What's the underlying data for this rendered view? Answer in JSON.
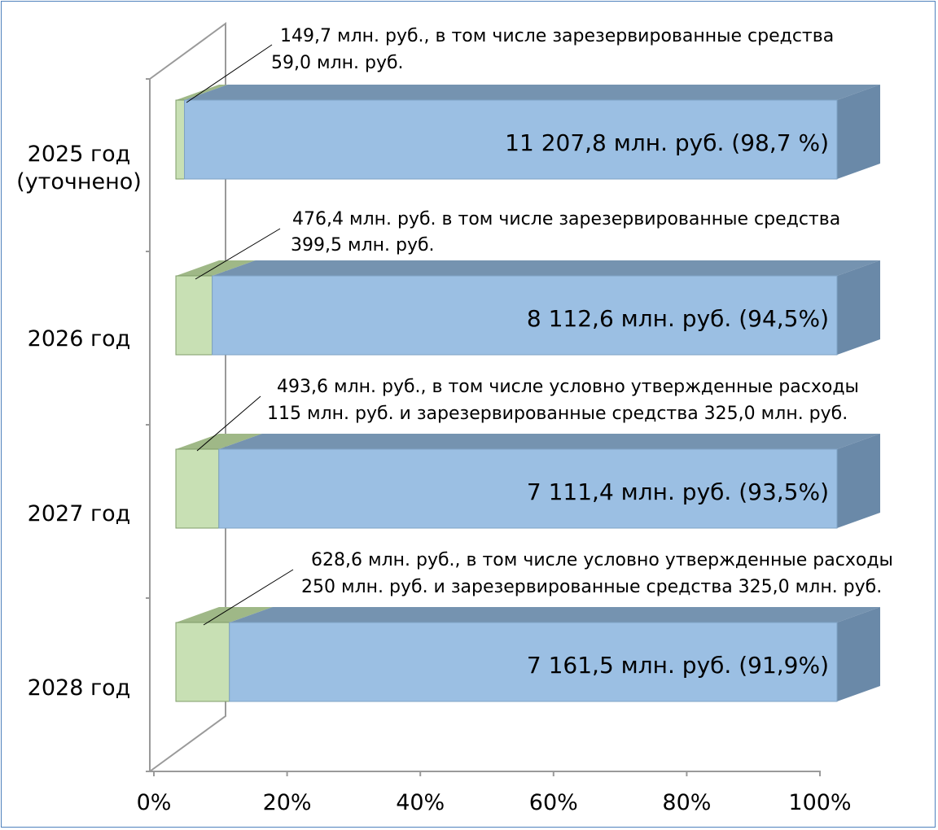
{
  "chart_data": {
    "type": "bar",
    "stacked": true,
    "horizontal": true,
    "three_d": true,
    "categories": [
      "2025 год\n(уточнено)",
      "2026 год",
      "2027 год",
      "2028 год"
    ],
    "series": [
      {
        "values": [
          1.3,
          5.5,
          6.5,
          8.1
        ],
        "color": "#c8e0b4"
      },
      {
        "values": [
          98.7,
          94.5,
          93.5,
          91.9
        ],
        "color": "#9bbfe3"
      }
    ],
    "bar_labels": [
      "11 207,8 млн. руб. (98,7 %)",
      "8 112,6 млн. руб. (94,5%)",
      "7 111,4 млн. руб. (93,5%)",
      "7 161,5 млн. руб. (91,9%)"
    ],
    "annotations": [
      [
        "149,7 млн. руб., в том числе зарезервированные средства",
        "59,0 млн. руб."
      ],
      [
        "476,4 млн. руб. в том числе зарезервированные средства",
        "399,5 млн. руб."
      ],
      [
        "493,6 млн. руб., в том числе условно утвержденные расходы",
        "115 млн. руб. и зарезервированные средства 325,0 млн. руб."
      ],
      [
        "628,6 млн. руб., в том числе условно утвержденные расходы",
        "250 млн. руб. и зарезервированные средства 325,0 млн. руб."
      ]
    ],
    "x_ticks": [
      "0%",
      "20%",
      "40%",
      "60%",
      "80%",
      "100%"
    ],
    "xlim": [
      0,
      100
    ],
    "grid": false,
    "legend": "none"
  }
}
